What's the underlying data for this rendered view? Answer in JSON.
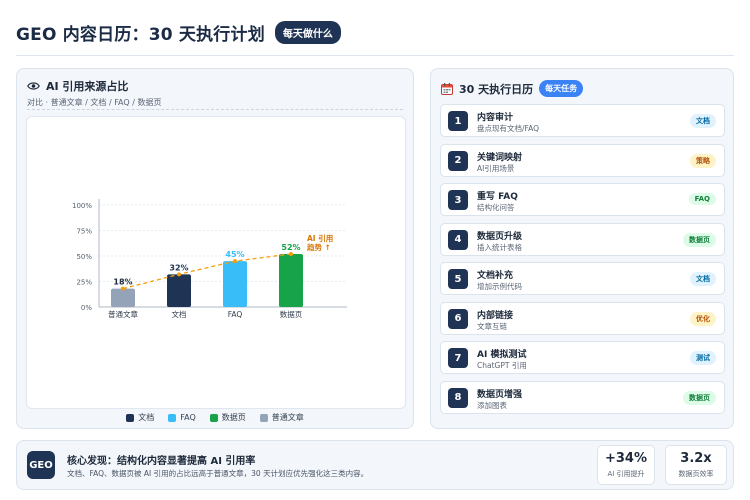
{
  "header": {
    "title": "GEO 内容日历：30 天执行计划",
    "badge": "每天做什么"
  },
  "left_panel": {
    "icon": "eye-icon",
    "title": "AI 引用来源占比",
    "subtitle": "对比 · 普通文章 / 文档 / FAQ / 数据页"
  },
  "chart_data": {
    "type": "bar",
    "categories": [
      "普通文章",
      "文档",
      "FAQ",
      "数据页"
    ],
    "values": [
      18,
      32,
      45,
      52
    ],
    "value_labels": [
      "18%",
      "32%",
      "45%",
      "52%"
    ],
    "colors": [
      "#94a3b8",
      "#1f3354",
      "#38bdf8",
      "#16a34a"
    ],
    "ylim": [
      0,
      100
    ],
    "yticks": [
      "0%",
      "25%",
      "50%",
      "75%",
      "100%"
    ],
    "trend_line": true,
    "annotation": [
      "AI 引用",
      "趋势 ↑"
    ],
    "legend": [
      {
        "label": "文档",
        "color": "#1f3354"
      },
      {
        "label": "FAQ",
        "color": "#38bdf8"
      },
      {
        "label": "数据页",
        "color": "#16a34a"
      },
      {
        "label": "普通文章",
        "color": "#94a3b8"
      }
    ]
  },
  "right_panel": {
    "icon": "calendar-icon",
    "title": "30 天执行日历",
    "badge": "每天任务",
    "tasks": [
      {
        "num": "1",
        "title": "内容审计",
        "sub": "盘点现有文档/FAQ",
        "tag": "文档",
        "tag_bg": "#e0f2fe",
        "tag_fg": "#0369a1"
      },
      {
        "num": "2",
        "title": "关键词映射",
        "sub": "AI引用场景",
        "tag": "策略",
        "tag_bg": "#fef3c7",
        "tag_fg": "#b45309"
      },
      {
        "num": "3",
        "title": "重写 FAQ",
        "sub": "结构化问答",
        "tag": "FAQ",
        "tag_bg": "#dcfce7",
        "tag_fg": "#15803d"
      },
      {
        "num": "4",
        "title": "数据页升级",
        "sub": "插入统计表格",
        "tag": "数据页",
        "tag_bg": "#dcfce7",
        "tag_fg": "#15803d"
      },
      {
        "num": "5",
        "title": "文档补充",
        "sub": "增加示例代码",
        "tag": "文档",
        "tag_bg": "#e0f2fe",
        "tag_fg": "#0369a1"
      },
      {
        "num": "6",
        "title": "内部链接",
        "sub": "文章互链",
        "tag": "优化",
        "tag_bg": "#fef3c7",
        "tag_fg": "#b45309"
      },
      {
        "num": "7",
        "title": "AI 模拟测试",
        "sub": "ChatGPT 引用",
        "tag": "测试",
        "tag_bg": "#e0f2fe",
        "tag_fg": "#0369a1"
      },
      {
        "num": "8",
        "title": "数据页增强",
        "sub": "添加图表",
        "tag": "数据页",
        "tag_bg": "#dcfce7",
        "tag_fg": "#15803d"
      }
    ]
  },
  "footer": {
    "badge": "GEO",
    "title": "核心发现：结构化内容显著提高 AI 引用率",
    "sub": "文档、FAQ、数据页被 AI 引用的占比远高于普通文章，30 天计划应优先强化这三类内容。",
    "stats": [
      {
        "value": "+34%",
        "label": "AI 引用提升"
      },
      {
        "value": "3.2x",
        "label": "数据页效率"
      }
    ]
  }
}
